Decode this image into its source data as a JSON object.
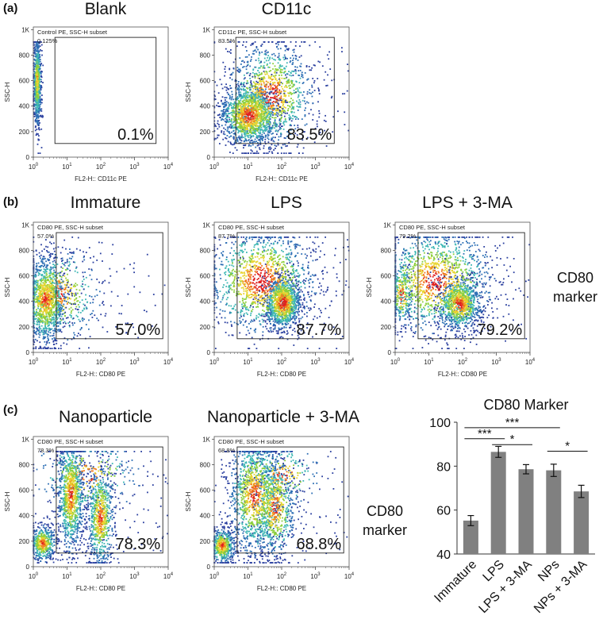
{
  "panel_labels": {
    "a": "(a)",
    "b": "(b)",
    "c": "(c)"
  },
  "marker_text": {
    "line1": "CD80",
    "line2": "marker"
  },
  "flow_plots": [
    {
      "title": "Blank",
      "header": "Control PE, SSC-H subset",
      "gate_pct": "0.125%",
      "big_pct": "0.1%",
      "xlabel": "FL2-H:: CD11c PE",
      "ylabel": "SSC-H",
      "pattern": "blank"
    },
    {
      "title": "CD11c",
      "header": "CD11c PE, SSC-H subset",
      "gate_pct": "83.5%",
      "big_pct": "83.5%",
      "xlabel": "FL2-H:: CD11c PE",
      "ylabel": "SSC-H",
      "pattern": "cd11c"
    },
    {
      "title": "Immature",
      "header": "CD80 PE, SSC-H subset",
      "gate_pct": "57.0%",
      "big_pct": "57.0%",
      "xlabel": "FL2-H:: CD80 PE",
      "ylabel": "SSC-H",
      "pattern": "immature"
    },
    {
      "title": "LPS",
      "header": "CD80 PE, SSC-H subset",
      "gate_pct": "87.7%",
      "big_pct": "87.7%",
      "xlabel": "FL2-H:: CD80 PE",
      "ylabel": "SSC-H",
      "pattern": "lps"
    },
    {
      "title": "LPS + 3-MA",
      "header": "CD80 PE, SSC-H subset",
      "gate_pct": "79.2%",
      "big_pct": "79.2%",
      "xlabel": "FL2-H:: CD80 PE",
      "ylabel": "SSC-H",
      "pattern": "lps3ma"
    },
    {
      "title": "Nanoparticle",
      "header": "CD80 PE, SSC-H subset",
      "gate_pct": "78.3%",
      "big_pct": "78.3%",
      "xlabel": "FL2-H:: CD80 PE",
      "ylabel": "SSC-H",
      "pattern": "np"
    },
    {
      "title": "Nanoparticle + 3-MA",
      "header": "CD80 PE, SSC-H subset",
      "gate_pct": "68.8%",
      "big_pct": "68.8%",
      "xlabel": "FL2-H:: CD80 PE",
      "ylabel": "SSC-H",
      "pattern": "np3ma"
    }
  ],
  "flow_axis": {
    "yticks": [
      "0",
      "200",
      "400",
      "600",
      "800",
      "1K"
    ],
    "xticks": [
      {
        "b": "10",
        "e": "0"
      },
      {
        "b": "10",
        "e": "1"
      },
      {
        "b": "10",
        "e": "2"
      },
      {
        "b": "10",
        "e": "3"
      },
      {
        "b": "10",
        "e": "4"
      }
    ]
  },
  "chart_data": {
    "type": "bar",
    "title": "CD80 Marker",
    "categories": [
      "Immature",
      "LPS",
      "LPS + 3-MA",
      "NPs",
      "NPs + 3-MA"
    ],
    "values": [
      55.2,
      86.5,
      78.6,
      78.1,
      68.5
    ],
    "errors": [
      2.3,
      2.5,
      2.1,
      2.8,
      2.8
    ],
    "ylim": [
      40,
      100
    ],
    "yticks": [
      40,
      60,
      80,
      100
    ],
    "color": "#808080",
    "significance": [
      {
        "from": 0,
        "to": 1,
        "label": "***"
      },
      {
        "from": 0,
        "to": 3,
        "label": "***"
      },
      {
        "from": 1,
        "to": 2,
        "label": "*"
      },
      {
        "from": 3,
        "to": 4,
        "label": "*"
      }
    ]
  }
}
